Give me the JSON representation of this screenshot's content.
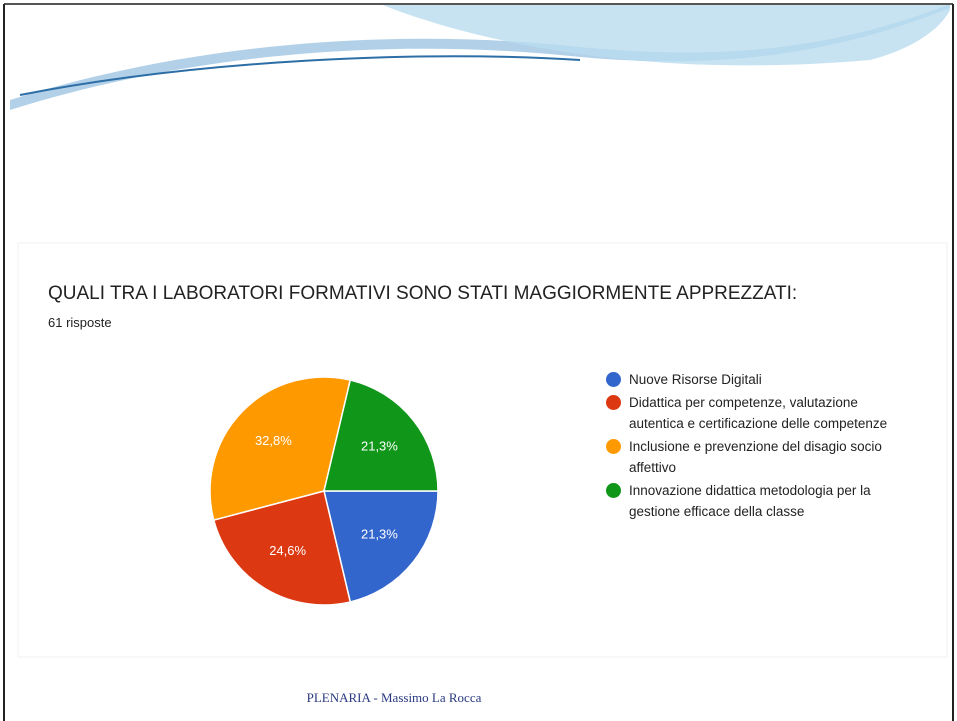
{
  "chart_data": {
    "type": "pie",
    "title": "QUALI TRA I LABORATORI FORMATIVI SONO STATI MAGGIORMENTE APPREZZATI:",
    "subtitle": "61 risposte",
    "categories": [
      "Nuove Risorse Digitali",
      "Didattica per competenze, valutazione autentica e certificazione delle competenze",
      "Inclusione e prevenzione del disagio socio affettivo",
      "Innovazione didattica metodologia per la gestione efficace della classe"
    ],
    "values": [
      21.3,
      24.6,
      32.8,
      21.3
    ],
    "value_labels": [
      "21,3%",
      "24,6%",
      "32,8%",
      "21,3%"
    ],
    "colors": [
      "#3366cc",
      "#dc3912",
      "#ff9900",
      "#109618"
    ]
  },
  "footer": "PLENARIA - Massimo La Rocca"
}
